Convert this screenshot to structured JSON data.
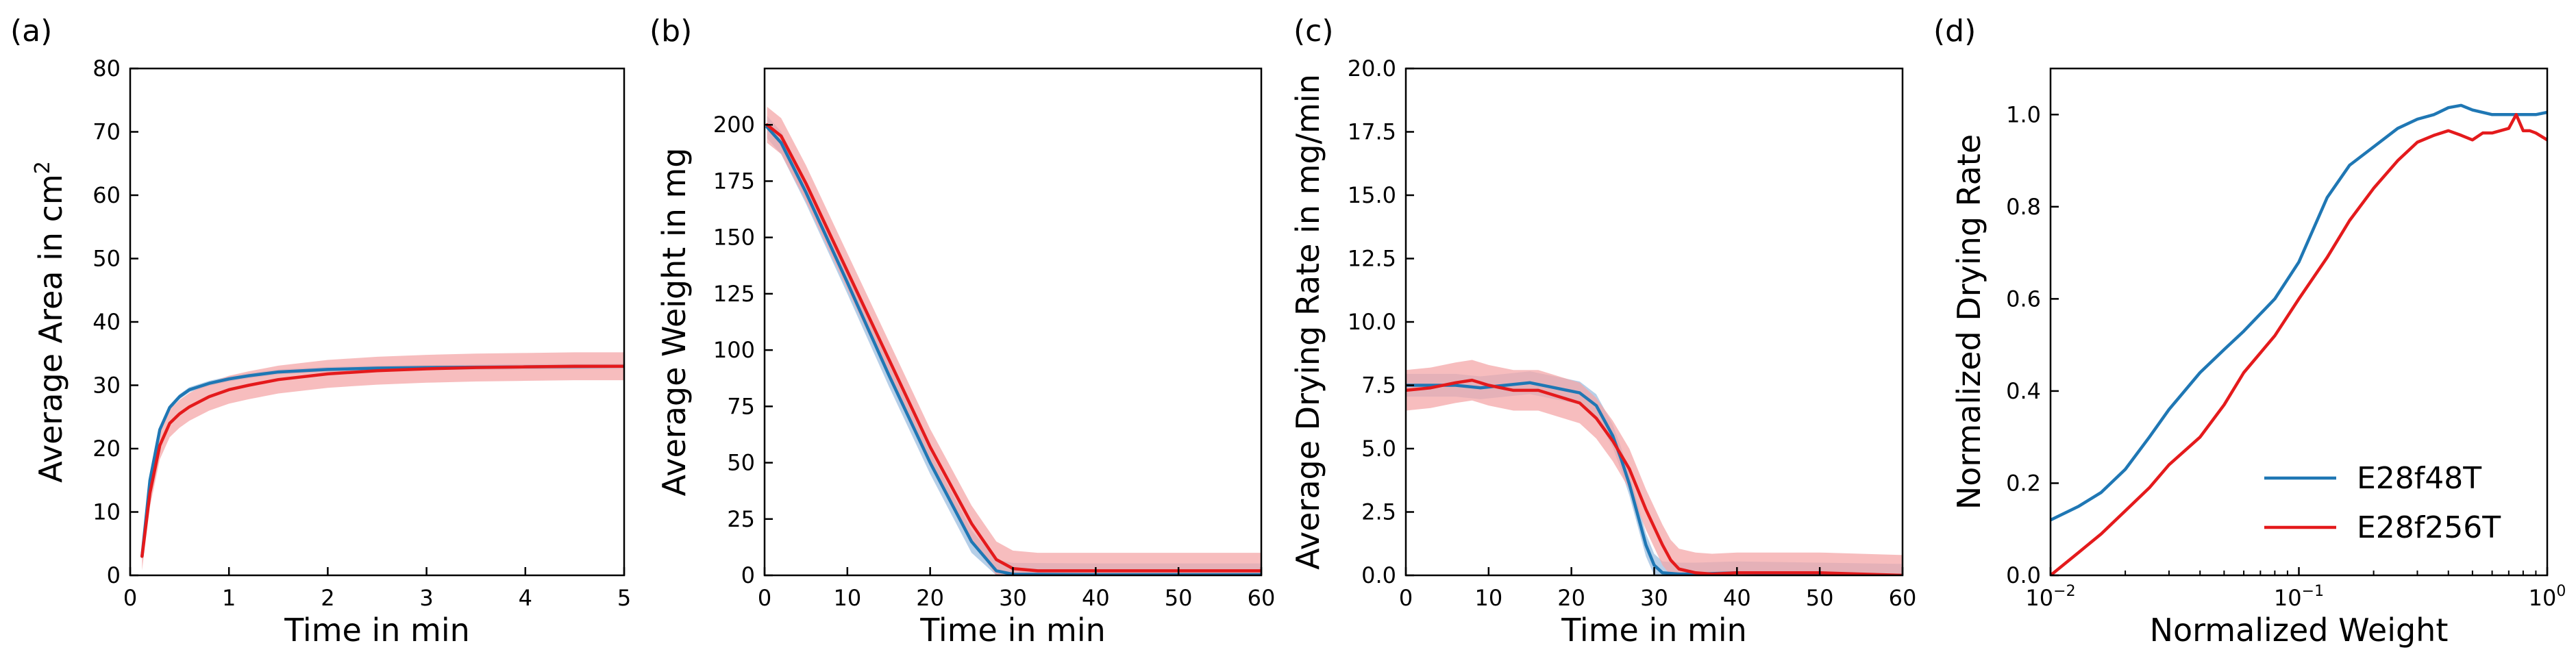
{
  "colors": {
    "blue": "#1f77b4",
    "red": "#e41a1c",
    "red_fill": "#f4a7a8",
    "blue_fill": "#9dbfe0"
  },
  "legend": [
    {
      "name": "E28f48T",
      "color": "#1f77b4"
    },
    {
      "name": "E28f256T",
      "color": "#e41a1c"
    }
  ],
  "chart_data": [
    {
      "panel": "(a)",
      "type": "line",
      "xlabel": "Time in min",
      "ylabel_main": "Average Area in cm",
      "ylabel_sup": "2",
      "xlim": [
        0,
        5
      ],
      "ylim": [
        0,
        80
      ],
      "xticks": [
        0,
        1,
        2,
        3,
        4,
        5
      ],
      "xtick_labels": [
        "0",
        "1",
        "2",
        "3",
        "4",
        "5"
      ],
      "yticks": [
        0,
        10,
        20,
        30,
        40,
        50,
        60,
        70,
        80
      ],
      "ytick_labels": [
        "0",
        "10",
        "20",
        "30",
        "40",
        "50",
        "60",
        "70",
        "80"
      ],
      "series": [
        {
          "name": "E28f48T",
          "x": [
            0.12,
            0.2,
            0.3,
            0.4,
            0.5,
            0.6,
            0.8,
            1.0,
            1.2,
            1.5,
            2.0,
            2.5,
            3.0,
            4.0,
            5.0
          ],
          "values": [
            3,
            15,
            23,
            26.5,
            28.2,
            29.3,
            30.3,
            31.0,
            31.5,
            32.1,
            32.5,
            32.7,
            32.8,
            32.9,
            33.0
          ],
          "band": 0.4
        },
        {
          "name": "E28f256T",
          "x": [
            0.12,
            0.2,
            0.3,
            0.4,
            0.5,
            0.6,
            0.8,
            1.0,
            1.2,
            1.5,
            2.0,
            2.5,
            3.0,
            3.5,
            4.0,
            4.5,
            5.0
          ],
          "values": [
            3,
            13,
            20.5,
            24,
            25.5,
            26.6,
            28.2,
            29.3,
            30.0,
            30.9,
            31.8,
            32.3,
            32.6,
            32.8,
            32.9,
            33.0,
            33.0
          ],
          "band": 2.2
        }
      ]
    },
    {
      "panel": "(b)",
      "type": "line",
      "xlabel": "Time in min",
      "ylabel": "Average Weight in mg",
      "xlim": [
        0,
        60
      ],
      "ylim": [
        0,
        225
      ],
      "xticks": [
        0,
        10,
        20,
        30,
        40,
        50,
        60
      ],
      "xtick_labels": [
        "0",
        "10",
        "20",
        "30",
        "40",
        "50",
        "60"
      ],
      "yticks": [
        0,
        25,
        50,
        75,
        100,
        125,
        150,
        175,
        200
      ],
      "ytick_labels": [
        "0",
        "25",
        "50",
        "75",
        "100",
        "125",
        "150",
        "175",
        "200"
      ],
      "series": [
        {
          "name": "E28f48T",
          "x": [
            0.3,
            2,
            5,
            10,
            15,
            20,
            25,
            28,
            30,
            40,
            50,
            60
          ],
          "values": [
            199,
            192,
            170,
            130,
            89,
            50,
            15,
            2,
            0.5,
            0.3,
            0.3,
            0.3
          ],
          "band": 5
        },
        {
          "name": "E28f256T",
          "x": [
            0.3,
            2,
            5,
            10,
            15,
            20,
            25,
            28,
            30,
            33,
            40,
            50,
            60
          ],
          "values": [
            200,
            195,
            174,
            135,
            96,
            57,
            23,
            7,
            3,
            2,
            2,
            2,
            2
          ],
          "band": 8
        }
      ]
    },
    {
      "panel": "(c)",
      "type": "line",
      "xlabel": "Time in min",
      "ylabel": "Average Drying Rate in mg/min",
      "xlim": [
        0,
        60
      ],
      "ylim": [
        0,
        20
      ],
      "xticks": [
        0,
        10,
        20,
        30,
        40,
        50,
        60
      ],
      "xtick_labels": [
        "0",
        "10",
        "20",
        "30",
        "40",
        "50",
        "60"
      ],
      "yticks": [
        0,
        2.5,
        5,
        7.5,
        10,
        12.5,
        15,
        17.5,
        20
      ],
      "ytick_labels": [
        "0.0",
        "2.5",
        "5.0",
        "7.5",
        "10.0",
        "12.5",
        "15.0",
        "17.5",
        "20.0"
      ],
      "series": [
        {
          "name": "E28f48T",
          "x": [
            0,
            3,
            6,
            9,
            12,
            15,
            18,
            21,
            23,
            25,
            26,
            27,
            28,
            29,
            30,
            31,
            33,
            35,
            40,
            50,
            60
          ],
          "values": [
            7.5,
            7.5,
            7.5,
            7.4,
            7.5,
            7.6,
            7.4,
            7.2,
            6.7,
            5.5,
            4.6,
            3.6,
            2.4,
            1.2,
            0.4,
            0.1,
            0.05,
            0.05,
            0.1,
            0.05,
            0
          ],
          "band": 0.45
        },
        {
          "name": "E28f256T",
          "x": [
            0,
            3,
            6,
            8,
            10,
            13,
            16,
            19,
            21,
            23,
            25,
            27,
            28,
            29,
            30,
            31,
            32,
            33,
            35,
            37,
            40,
            50,
            60
          ],
          "values": [
            7.3,
            7.4,
            7.6,
            7.7,
            7.5,
            7.3,
            7.3,
            7.0,
            6.8,
            6.2,
            5.3,
            4.2,
            3.4,
            2.6,
            1.9,
            1.2,
            0.6,
            0.25,
            0.1,
            0.05,
            0.1,
            0.1,
            0
          ],
          "band": 0.8
        }
      ]
    },
    {
      "panel": "(d)",
      "type": "line",
      "xscale": "log",
      "xlabel": "Normalized Weight",
      "ylabel": "Normalized Drying Rate",
      "xlim": [
        0.01,
        1
      ],
      "ylim": [
        0,
        1.1
      ],
      "xticks": [
        0.01,
        0.1,
        1
      ],
      "xtick_labels": [
        "10",
        "10",
        "10"
      ],
      "xtick_exps": [
        "−2",
        "−1",
        "0"
      ],
      "yticks": [
        0,
        0.2,
        0.4,
        0.6,
        0.8,
        1.0
      ],
      "ytick_labels": [
        "0.0",
        "0.2",
        "0.4",
        "0.6",
        "0.8",
        "1.0"
      ],
      "legend_loc": "lower-right",
      "series": [
        {
          "name": "E28f48T",
          "x": [
            0.01,
            0.013,
            0.016,
            0.02,
            0.025,
            0.03,
            0.04,
            0.05,
            0.06,
            0.08,
            0.1,
            0.13,
            0.16,
            0.2,
            0.25,
            0.3,
            0.35,
            0.4,
            0.45,
            0.5,
            0.6,
            0.7,
            0.8,
            0.9,
            1.0
          ],
          "values": [
            0.12,
            0.15,
            0.18,
            0.23,
            0.3,
            0.36,
            0.44,
            0.49,
            0.53,
            0.6,
            0.68,
            0.82,
            0.89,
            0.93,
            0.97,
            0.99,
            1.0,
            1.015,
            1.02,
            1.01,
            1.0,
            1.0,
            1.0,
            1.0,
            1.005
          ]
        },
        {
          "name": "E28f256T",
          "x": [
            0.01,
            0.013,
            0.016,
            0.02,
            0.025,
            0.03,
            0.04,
            0.05,
            0.06,
            0.08,
            0.1,
            0.13,
            0.16,
            0.2,
            0.25,
            0.3,
            0.35,
            0.4,
            0.45,
            0.5,
            0.55,
            0.6,
            0.7,
            0.75,
            0.8,
            0.85,
            0.9,
            1.0
          ],
          "values": [
            0.0,
            0.05,
            0.09,
            0.14,
            0.19,
            0.24,
            0.3,
            0.37,
            0.44,
            0.52,
            0.6,
            0.69,
            0.77,
            0.84,
            0.9,
            0.94,
            0.955,
            0.965,
            0.955,
            0.945,
            0.96,
            0.96,
            0.97,
            1.0,
            0.965,
            0.965,
            0.96,
            0.945
          ]
        }
      ]
    }
  ]
}
